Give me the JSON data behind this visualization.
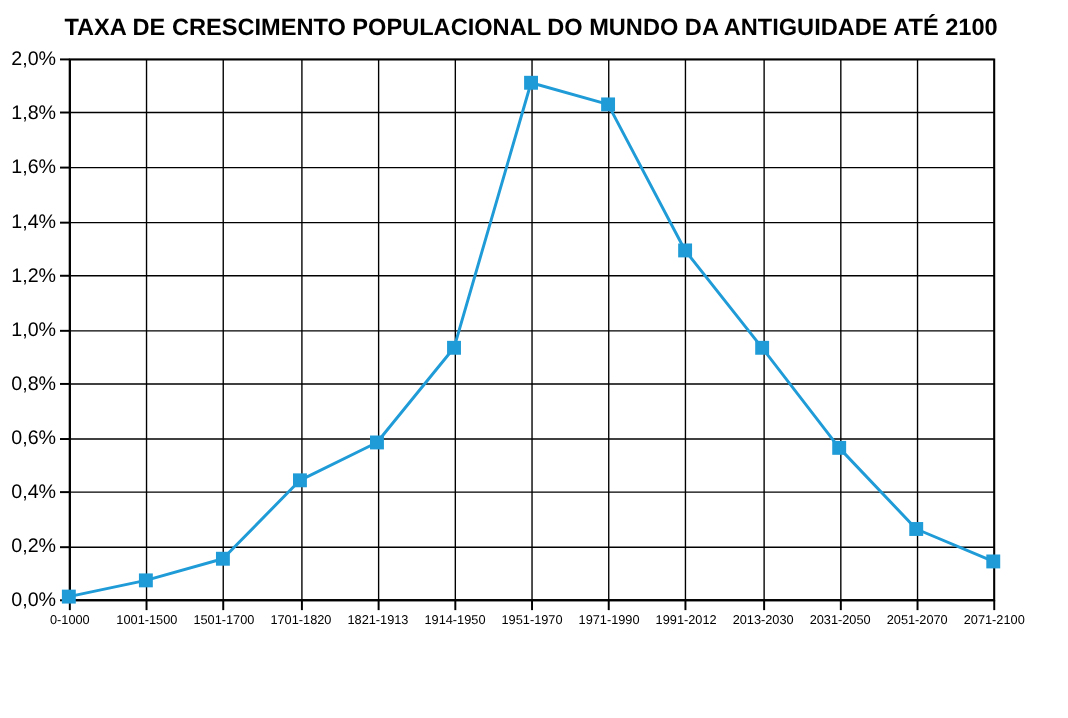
{
  "chart_data": {
    "type": "line",
    "title": "TAXA DE CRESCIMENTO POPULACIONAL DO MUNDO DA ANTIGUIDADE ATÉ 2100",
    "categories": [
      "0-1000",
      "1001-1500",
      "1501-1700",
      "1701-1820",
      "1821-1913",
      "1914-1950",
      "1951-1970",
      "1971-1990",
      "1991-2012",
      "2013-2030",
      "2031-2050",
      "2051-2070",
      "2071-2100"
    ],
    "series": [
      {
        "color": "#1f9bd7",
        "values": [
          0.01,
          0.07,
          0.15,
          0.44,
          0.58,
          0.93,
          1.91,
          1.83,
          1.29,
          0.93,
          0.56,
          0.26,
          0.14
        ]
      }
    ],
    "ylim": [
      0,
      2.0
    ],
    "yticks": [
      {
        "value": 0,
        "label": "0,0%"
      },
      {
        "value": 0.2,
        "label": "0,2%"
      },
      {
        "value": 0.4,
        "label": "0,4%"
      },
      {
        "value": 0.6,
        "label": "0,6%"
      },
      {
        "value": 0.8,
        "label": "0,8%"
      },
      {
        "value": 1.0,
        "label": "1,0%"
      },
      {
        "value": 1.2,
        "label": "1,2%"
      },
      {
        "value": 1.4,
        "label": "1,4%"
      },
      {
        "value": 1.6,
        "label": "1,6%"
      },
      {
        "value": 1.8,
        "label": "1,8%"
      },
      {
        "value": 2.0,
        "label": "2,0%"
      }
    ],
    "grid": true,
    "marker": "square",
    "line_style": "solid"
  }
}
